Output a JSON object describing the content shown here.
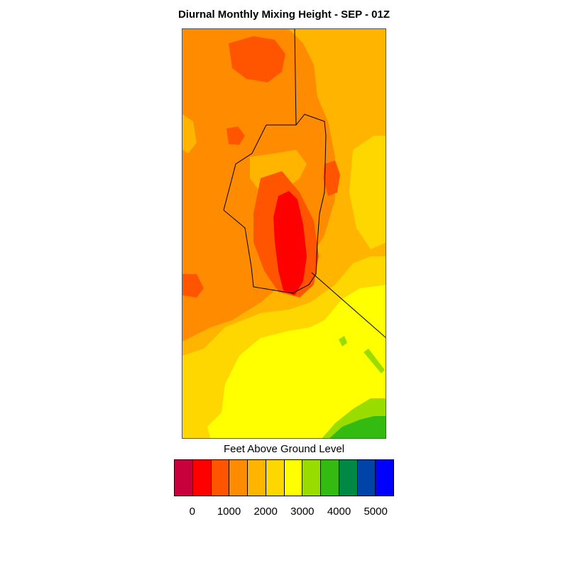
{
  "title": "Diurnal Monthly Mixing Height - SEP - 01Z",
  "legend": {
    "title": "Feet Above Ground Level",
    "ticks": [
      "0",
      "1000",
      "2000",
      "3000",
      "4000",
      "5000"
    ],
    "colors": [
      "#c8003c",
      "#ff0000",
      "#ff5500",
      "#ff8c00",
      "#ffb400",
      "#ffd700",
      "#ffff00",
      "#99dd00",
      "#33bb11",
      "#008844",
      "#0044aa",
      "#0000ff"
    ]
  },
  "map": {
    "background_color": "#ff8c00",
    "boundary_color": "#000000"
  }
}
